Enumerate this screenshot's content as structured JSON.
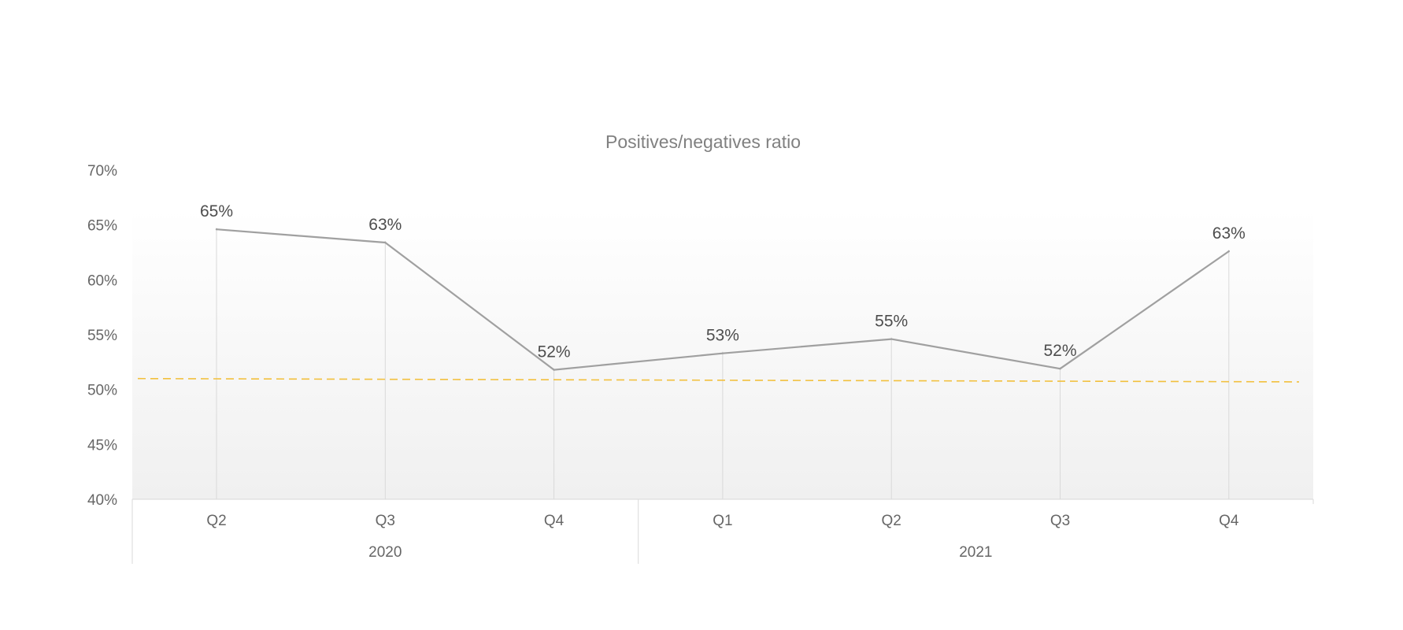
{
  "chart_data": {
    "type": "line",
    "title": "Positives/negatives ratio",
    "xlabel": "",
    "ylabel": "",
    "ylim": [
      0.4,
      0.7
    ],
    "y_ticks": [
      0.4,
      0.45,
      0.5,
      0.55,
      0.6,
      0.65,
      0.7
    ],
    "y_tick_labels": [
      "40%",
      "45%",
      "50%",
      "55%",
      "60%",
      "65%",
      "70%"
    ],
    "categories": [
      "Q2",
      "Q3",
      "Q4",
      "Q1",
      "Q2",
      "Q3",
      "Q4"
    ],
    "category_groups": [
      {
        "label": "2020",
        "count": 3
      },
      {
        "label": "2021",
        "count": 4
      }
    ],
    "series": [
      {
        "values": [
          0.646,
          0.634,
          0.518,
          0.533,
          0.546,
          0.519,
          0.626
        ],
        "labels": [
          "65%",
          "63%",
          "52%",
          "53%",
          "55%",
          "52%",
          "63%"
        ],
        "color": "#a0a0a0"
      }
    ],
    "trendline": {
      "style": "dashed",
      "color": "#f2c03d",
      "start": 0.51,
      "end": 0.507
    },
    "grid": false,
    "drop_lines": true,
    "legend": "none",
    "plot_background": "light gray gradient"
  }
}
